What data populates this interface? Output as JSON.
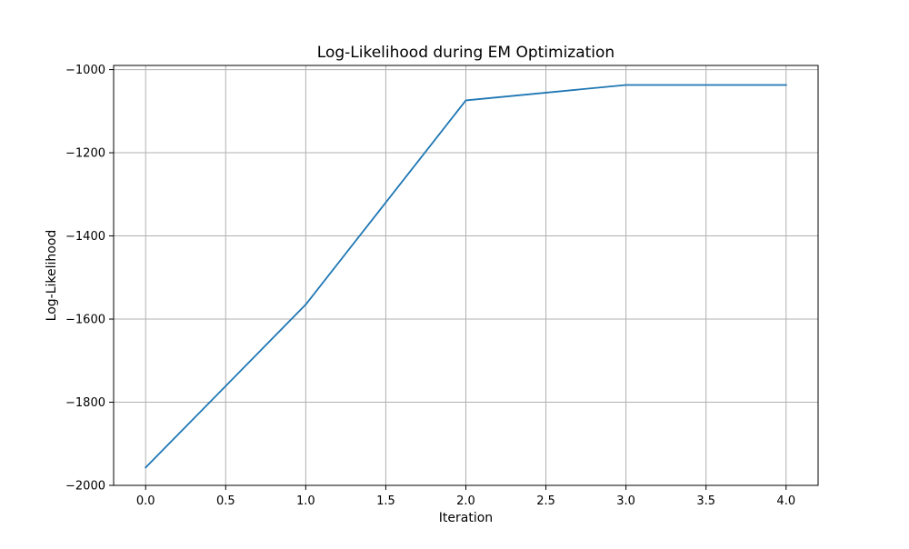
{
  "chart_data": {
    "type": "line",
    "title": "Log-Likelihood during EM Optimization",
    "xlabel": "Iteration",
    "ylabel": "Log-Likelihood",
    "xlim": [
      -0.2,
      4.2
    ],
    "ylim": [
      -2000,
      -990
    ],
    "x_ticks": [
      0.0,
      0.5,
      1.0,
      1.5,
      2.0,
      2.5,
      3.0,
      3.5,
      4.0
    ],
    "x_tick_labels": [
      "0.0",
      "0.5",
      "1.0",
      "1.5",
      "2.0",
      "2.5",
      "3.0",
      "3.5",
      "4.0"
    ],
    "y_ticks": [
      -2000,
      -1800,
      -1600,
      -1400,
      -1200,
      -1000
    ],
    "y_tick_labels": [
      "−2000",
      "−1800",
      "−1600",
      "−1400",
      "−1200",
      "−1000"
    ],
    "grid": true,
    "series": [
      {
        "x": [
          0,
          1,
          2,
          3,
          4
        ],
        "values": [
          -1957,
          -1565,
          -1074,
          -1037,
          -1037
        ],
        "color": "#1f77b4"
      }
    ]
  }
}
